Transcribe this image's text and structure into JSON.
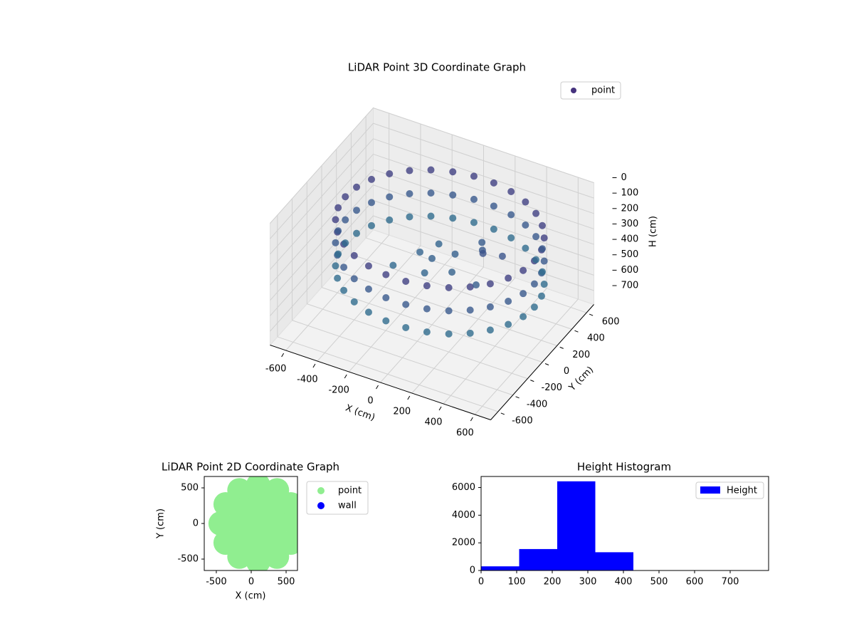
{
  "chart_data": [
    {
      "type": "scatter3d",
      "title": "LiDAR Point 3D Coordinate Graph",
      "xlabel": "X (cm)",
      "ylabel": "Y (cm)",
      "zlabel": "H (cm)",
      "xlim": [
        -700,
        700
      ],
      "ylim": [
        -700,
        700
      ],
      "zlim": [
        790,
        0
      ],
      "xticks": [
        -600,
        -400,
        -200,
        0,
        200,
        400,
        600
      ],
      "yticks": [
        -600,
        -400,
        -200,
        0,
        200,
        400,
        600
      ],
      "zticks": [
        0,
        100,
        200,
        300,
        400,
        500,
        600,
        700
      ],
      "cmap": "viridis",
      "legend": "upper right",
      "series": [
        {
          "name": "point",
          "color": "#46337e",
          "x": [
            650,
            637,
            598,
            535,
            451,
            350,
            235,
            113,
            -13,
            -135,
            -250,
            -351,
            -435,
            -498,
            -537,
            -550,
            -537,
            -498,
            -435,
            -351,
            -250,
            -135,
            -13,
            113,
            235,
            350,
            451,
            535,
            598,
            637,
            650,
            637,
            598,
            535,
            451,
            350,
            235,
            113,
            -13,
            -135,
            -250,
            -351,
            -435,
            -498,
            -537,
            -550,
            -537,
            -498,
            -435,
            -351,
            -250,
            -135,
            -13,
            113,
            235,
            350,
            451,
            535,
            598,
            637,
            650,
            637,
            598,
            535,
            451,
            350,
            235,
            113,
            -13,
            -135,
            -250,
            -351,
            -435,
            -498,
            -537,
            -550,
            -537,
            -498,
            -435,
            -351,
            -250,
            -135,
            -13,
            113,
            235,
            350,
            451,
            535,
            598,
            637,
            -100,
            0,
            100,
            -200,
            150,
            250,
            300,
            200,
            -50,
            400,
            350,
            0
          ],
          "y": [
            0,
            125,
            244,
            353,
            446,
            520,
            571,
            597,
            597,
            571,
            520,
            446,
            353,
            244,
            125,
            0,
            -125,
            -244,
            -353,
            -446,
            -520,
            -571,
            -597,
            -597,
            -571,
            -520,
            -446,
            -353,
            -244,
            -125,
            0,
            125,
            244,
            353,
            446,
            520,
            571,
            597,
            597,
            571,
            520,
            446,
            353,
            244,
            125,
            0,
            -125,
            -244,
            -353,
            -446,
            -520,
            -571,
            -597,
            -597,
            -571,
            -520,
            -446,
            -353,
            -244,
            -125,
            0,
            125,
            244,
            353,
            446,
            520,
            571,
            597,
            597,
            571,
            520,
            446,
            353,
            244,
            125,
            0,
            -125,
            -244,
            -353,
            -446,
            -520,
            -571,
            -597,
            -597,
            -571,
            -520,
            -446,
            -353,
            -244,
            -125,
            50,
            -100,
            100,
            -100,
            -50,
            150,
            50,
            250,
            200,
            100,
            -150,
            0
          ],
          "z": [
            150,
            150,
            150,
            150,
            150,
            150,
            150,
            150,
            150,
            150,
            150,
            150,
            150,
            150,
            150,
            150,
            150,
            150,
            150,
            150,
            150,
            150,
            150,
            150,
            150,
            150,
            150,
            150,
            150,
            150,
            300,
            300,
            300,
            300,
            300,
            300,
            300,
            300,
            300,
            300,
            300,
            300,
            300,
            300,
            300,
            300,
            300,
            300,
            300,
            300,
            300,
            300,
            300,
            300,
            300,
            300,
            300,
            300,
            300,
            300,
            450,
            450,
            450,
            450,
            450,
            450,
            450,
            450,
            450,
            450,
            450,
            450,
            450,
            450,
            450,
            450,
            450,
            450,
            450,
            450,
            450,
            450,
            450,
            450,
            450,
            450,
            450,
            450,
            450,
            450,
            380,
            400,
            350,
            420,
            370,
            300,
            250,
            320,
            390,
            260,
            330,
            360
          ]
        }
      ]
    },
    {
      "type": "scatter",
      "title": "LiDAR Point 2D Coordinate Graph",
      "xlabel": "X (cm)",
      "ylabel": "Y (cm)",
      "xlim": [
        -673,
        663
      ],
      "ylim": [
        -660,
        660
      ],
      "xticks": [
        -500,
        0,
        500
      ],
      "yticks": [
        -500,
        0,
        500
      ],
      "legend": "outside right",
      "series": [
        {
          "name": "point",
          "color": "#90ee90",
          "x": [
            640,
            568,
            370,
            100,
            -170,
            -368,
            -440,
            -368,
            -170,
            100,
            370,
            568,
            380,
            298,
            100,
            -98,
            -180,
            -98,
            100,
            298,
            100
          ],
          "y": [
            0,
            270,
            468,
            540,
            468,
            270,
            0,
            -270,
            -468,
            -540,
            -468,
            -270,
            0,
            198,
            280,
            198,
            0,
            -198,
            -280,
            -198,
            0
          ]
        },
        {
          "name": "wall",
          "color": "#0000ff",
          "x": [],
          "y": []
        }
      ]
    },
    {
      "type": "histogram",
      "title": "Height Histogram",
      "name": "Height",
      "color": "#0000ff",
      "bins": [
        0,
        107,
        214,
        321,
        428,
        535,
        642,
        749
      ],
      "values": [
        300,
        1550,
        6450,
        1320,
        0,
        0,
        0
      ],
      "xlim": [
        0,
        808
      ],
      "ylim": [
        0,
        6800
      ],
      "xticks": [
        0,
        100,
        200,
        300,
        400,
        500,
        600,
        700
      ],
      "yticks": [
        0,
        2000,
        4000,
        6000
      ],
      "legend": "upper right"
    }
  ]
}
